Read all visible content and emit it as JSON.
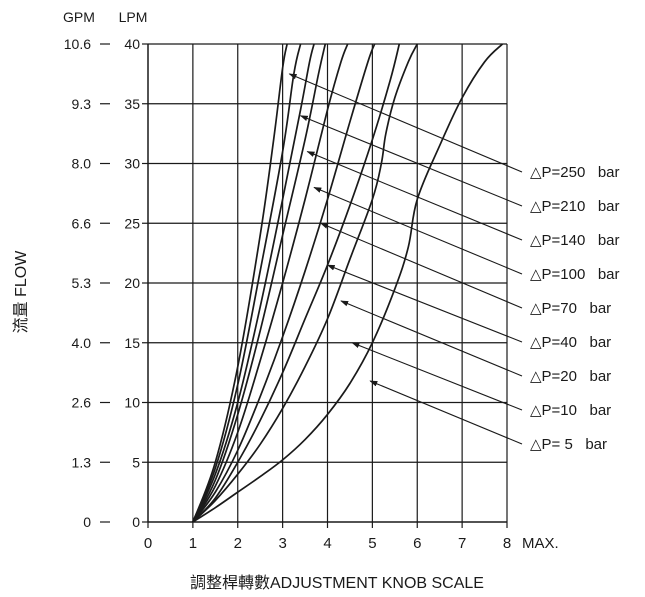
{
  "chart_data": {
    "type": "line",
    "title": "",
    "xlabel": "調整桿轉數ADJUSTMENT KNOB SCALE",
    "ylabel": "流量 FLOW",
    "y_unit_left": "GPM",
    "y_unit_right": "LPM",
    "xlim": [
      0,
      8
    ],
    "ylim": [
      0,
      40
    ],
    "x_ticks": [
      "0",
      "1",
      "2",
      "3",
      "4",
      "5",
      "6",
      "7",
      "8"
    ],
    "x_max_label": "MAX.",
    "y_ticks_lpm": [
      "0",
      "5",
      "10",
      "15",
      "20",
      "25",
      "30",
      "35",
      "40"
    ],
    "y_ticks_gpm": [
      "0",
      "1.3",
      "2.6",
      "4.0",
      "5.3",
      "6.6",
      "8.0",
      "9.3",
      "10.6"
    ],
    "grid": true,
    "legend_placement": "right, with leader arrows",
    "series": [
      {
        "name": "△P=250   bar",
        "x": [
          1,
          1.5,
          2,
          2.5,
          2.8,
          3.0,
          3.1
        ],
        "y": [
          0,
          5,
          13,
          24,
          32,
          38,
          40
        ]
      },
      {
        "name": "△P=210   bar",
        "x": [
          1,
          1.5,
          2,
          2.5,
          3.0,
          3.25,
          3.4
        ],
        "y": [
          0,
          4.5,
          11.5,
          21,
          31,
          37.5,
          40
        ]
      },
      {
        "name": "△P=140   bar",
        "x": [
          1,
          1.5,
          2,
          2.5,
          3.0,
          3.4,
          3.6,
          3.7
        ],
        "y": [
          0,
          4,
          10,
          18,
          27,
          34.5,
          38.5,
          40
        ]
      },
      {
        "name": "△P=100   bar",
        "x": [
          1,
          1.5,
          2,
          2.5,
          3.0,
          3.5,
          3.8,
          3.95
        ],
        "y": [
          0,
          3.5,
          9,
          16,
          24,
          32,
          37.5,
          40
        ]
      },
      {
        "name": "△P=70   bar",
        "x": [
          1,
          1.5,
          2,
          2.5,
          3.0,
          3.5,
          4.0,
          4.3,
          4.45
        ],
        "y": [
          0,
          3,
          7.5,
          13.5,
          20,
          27,
          34.5,
          38.5,
          40
        ]
      },
      {
        "name": "△P=40   bar",
        "x": [
          1,
          1.5,
          2,
          2.5,
          3.0,
          3.5,
          4.0,
          4.5,
          4.9,
          5.05
        ],
        "y": [
          0,
          2.5,
          6,
          10.5,
          15.5,
          21,
          27,
          33.5,
          38.5,
          40
        ]
      },
      {
        "name": "△P=20   bar",
        "x": [
          1,
          1.5,
          2,
          2.5,
          3.0,
          3.5,
          4.0,
          4.5,
          5.0,
          5.4,
          5.6
        ],
        "y": [
          0,
          2,
          5,
          8.5,
          12.5,
          17,
          21.5,
          26.5,
          32,
          37,
          40
        ]
      },
      {
        "name": "△P=10   bar",
        "x": [
          1,
          1.5,
          2,
          2.5,
          3.0,
          3.5,
          4.0,
          4.5,
          5.0,
          5.2,
          5.3,
          5.5,
          5.8,
          6.0
        ],
        "y": [
          0,
          1.8,
          4,
          6.5,
          9.5,
          13,
          17,
          22,
          27,
          30,
          32.5,
          35.5,
          38.5,
          40
        ]
      },
      {
        "name": "△P= 5   bar",
        "x": [
          1,
          1.5,
          2,
          2.5,
          3.0,
          3.5,
          4.0,
          4.5,
          5.0,
          5.5,
          5.8,
          6.0,
          6.5,
          7.0,
          7.5,
          7.9
        ],
        "y": [
          0,
          1.2,
          2.5,
          3.8,
          5.2,
          6.9,
          9.0,
          11.6,
          15.0,
          19.5,
          23.0,
          27.0,
          31.5,
          35.5,
          38.5,
          40
        ]
      }
    ],
    "arrow_points": [
      {
        "x": 3.15,
        "y": 37.5
      },
      {
        "x": 3.4,
        "y": 34
      },
      {
        "x": 3.55,
        "y": 31
      },
      {
        "x": 3.7,
        "y": 28
      },
      {
        "x": 3.85,
        "y": 25
      },
      {
        "x": 4.0,
        "y": 21.5
      },
      {
        "x": 4.3,
        "y": 18.5
      },
      {
        "x": 4.55,
        "y": 15
      },
      {
        "x": 4.95,
        "y": 11.8
      }
    ]
  }
}
